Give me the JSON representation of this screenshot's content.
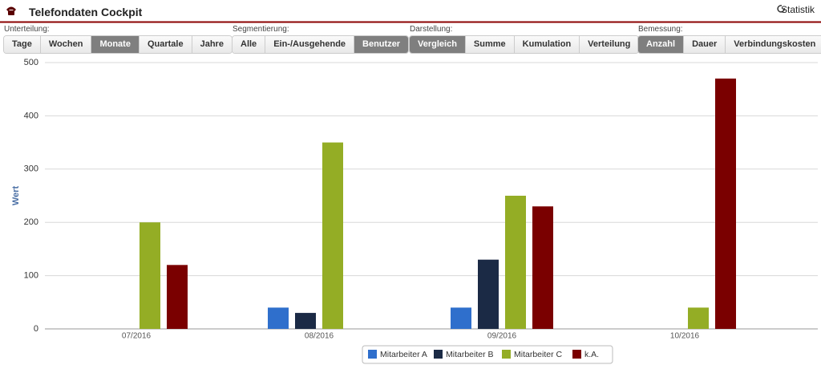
{
  "header": {
    "title": "Telefondaten Cockpit",
    "link": "Statistik"
  },
  "toolbar": [
    {
      "label": "Unterteilung:",
      "buttons": [
        "Tage",
        "Wochen",
        "Monate",
        "Quartale",
        "Jahre"
      ],
      "active": 2
    },
    {
      "label": "Segmentierung:",
      "buttons": [
        "Alle",
        "Ein-/Ausgehende",
        "Benutzer"
      ],
      "active": 2
    },
    {
      "label": "Darstellung:",
      "buttons": [
        "Vergleich",
        "Summe",
        "Kumulation",
        "Verteilung"
      ],
      "active": 0
    },
    {
      "label": "Bemessung:",
      "buttons": [
        "Anzahl",
        "Dauer",
        "Verbindungskosten"
      ],
      "active": 0
    }
  ],
  "chart_data": {
    "type": "bar",
    "y_label": "Wert",
    "categories": [
      "07/2016",
      "08/2016",
      "09/2016",
      "10/2016"
    ],
    "series": [
      {
        "name": "Mitarbeiter A",
        "color": "#2f6fcc",
        "values": [
          null,
          40,
          40,
          null
        ]
      },
      {
        "name": "Mitarbeiter B",
        "color": "#1b2a45",
        "values": [
          null,
          30,
          130,
          null
        ]
      },
      {
        "name": "Mitarbeiter C",
        "color": "#94ad25",
        "values": [
          200,
          350,
          250,
          40
        ]
      },
      {
        "name": "k.A.",
        "color": "#7a0000",
        "values": [
          120,
          null,
          230,
          470
        ]
      }
    ],
    "ylim": [
      0,
      500
    ],
    "yticks": [
      0,
      100,
      200,
      300,
      400,
      500
    ],
    "grid": true,
    "legend": "bottom"
  }
}
